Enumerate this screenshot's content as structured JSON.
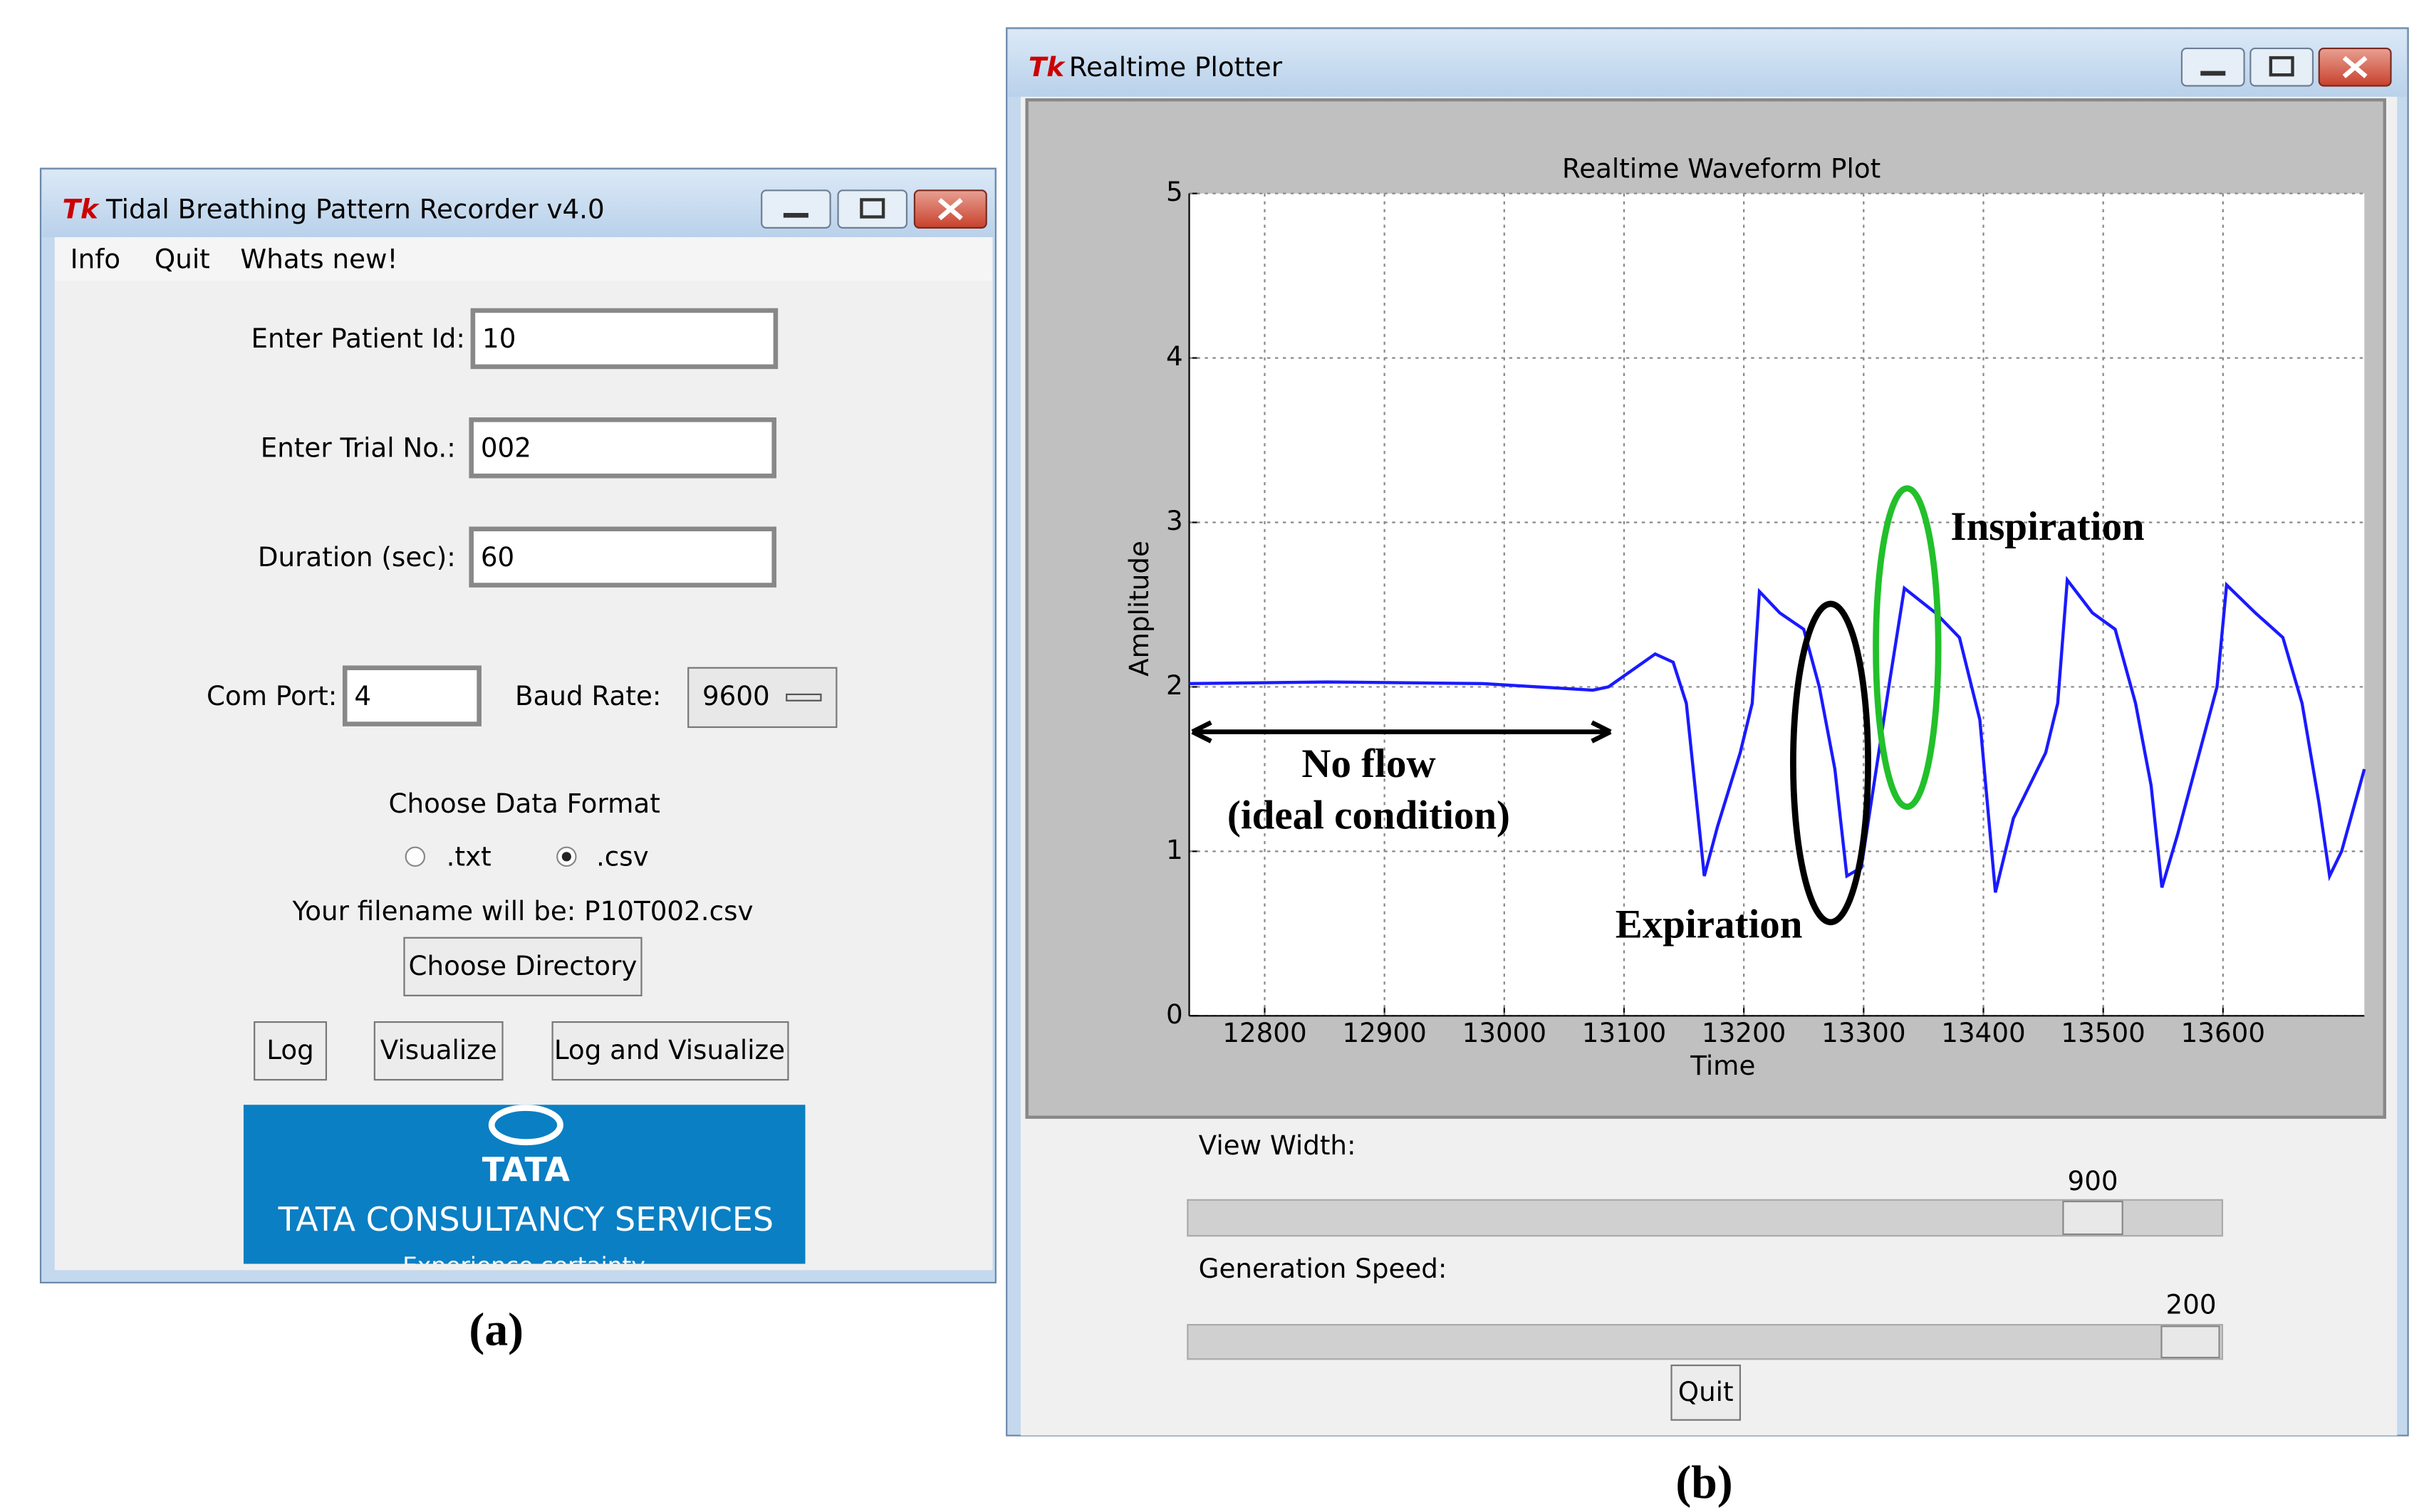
{
  "left_window": {
    "title": "Tidal Breathing Pattern Recorder v4.0",
    "menu": [
      "Info",
      "Quit",
      "Whats new!"
    ],
    "fields": [
      {
        "label": "Enter Patient Id:",
        "value": "10"
      },
      {
        "label": "Enter Trial No.:",
        "value": "002"
      },
      {
        "label": "Duration (sec):",
        "value": "60"
      }
    ],
    "com_port": {
      "label": "Com Port:",
      "value": "4"
    },
    "baud_rate": {
      "label": "Baud Rate:",
      "value": "9600"
    },
    "format": {
      "label": "Choose Data Format",
      "options": [
        ".txt",
        ".csv"
      ]
    },
    "filename": "Your filename will be: P10T002.csv",
    "choose_directory": "Choose Directory",
    "buttons": [
      "Log",
      "Visualize",
      "Log and Visualize"
    ],
    "logo": {
      "brand": "TATA",
      "company": "TATA CONSULTANCY SERVICES",
      "tagline": "Experience certainty."
    },
    "caption": "(a)"
  },
  "right_window": {
    "title": "Realtime Plotter",
    "sliders": [
      {
        "label": "View Width:",
        "value": "900"
      },
      {
        "label": "Generation Speed:",
        "value": "200"
      }
    ],
    "quit": "Quit",
    "caption": "(b)"
  },
  "chart_data": {
    "type": "line",
    "title": "Realtime Waveform Plot",
    "x_label": "Time",
    "y_label": "Amplitude",
    "x": [
      12737,
      12852,
      12982,
      13074,
      13087,
      13126,
      13141,
      13152,
      13167,
      13178,
      13197,
      13207,
      13213,
      13230,
      13250,
      13263,
      13276,
      13286,
      13298,
      13321,
      13334,
      13360,
      13380,
      13397,
      13410,
      13425,
      13452,
      13462,
      13470,
      13491,
      13510,
      13527,
      13540,
      13549,
      13562,
      13584,
      13595,
      13603,
      13627,
      13650,
      13666,
      13680,
      13689,
      13699,
      13718
    ],
    "values": [
      2.02,
      2.03,
      2.02,
      1.98,
      2.0,
      2.2,
      2.15,
      1.9,
      0.85,
      1.15,
      1.6,
      1.9,
      2.58,
      2.45,
      2.35,
      2.0,
      1.5,
      0.85,
      0.9,
      2.0,
      2.6,
      2.45,
      2.3,
      1.8,
      0.75,
      1.2,
      1.6,
      1.9,
      2.65,
      2.45,
      2.35,
      1.9,
      1.4,
      0.78,
      1.1,
      1.7,
      2.0,
      2.62,
      2.45,
      2.3,
      1.9,
      1.3,
      0.85,
      1.0,
      1.5
    ],
    "color": "#1a1aff",
    "xlim": [
      12737,
      13718
    ],
    "ylim": [
      0,
      5
    ],
    "xticks": [
      12800,
      12900,
      13000,
      13100,
      13200,
      13300,
      13400,
      13500,
      13600
    ],
    "yticks": [
      0,
      1,
      2,
      3,
      4,
      5
    ],
    "grid": true,
    "annotations": [
      "No flow",
      "(ideal condition)",
      "Expiration",
      "Inspiration"
    ]
  }
}
